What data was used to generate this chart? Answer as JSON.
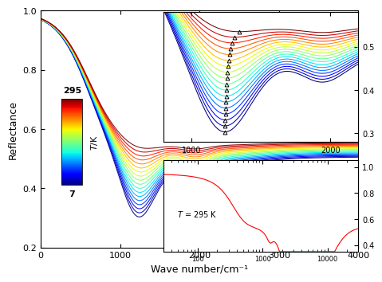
{
  "title": "",
  "xlabel": "Wave number/cm⁻¹",
  "ylabel": "Reflectance",
  "xlim": [
    0,
    4000
  ],
  "ylim": [
    0.2,
    1.0
  ],
  "xticks": [
    0,
    1000,
    2000,
    3000,
    4000
  ],
  "yticks": [
    0.2,
    0.4,
    0.6,
    0.8,
    1.0
  ],
  "n_curves": 18,
  "T_min": 7,
  "T_max": 295,
  "bg_color": "#ffffff",
  "inset1": {
    "xlim": [
      800,
      2200
    ],
    "ylim": [
      0.28,
      0.58
    ],
    "xticks": [
      1000,
      2000
    ],
    "yticks": [
      0.3,
      0.4,
      0.5
    ]
  },
  "inset2": {
    "ylim": [
      0.35,
      1.05
    ],
    "yticks": [
      0.4,
      0.6,
      0.8,
      1.0
    ],
    "label": "T = 295 K"
  },
  "colorbar_label": "T/K",
  "colorbar_label_italic": true
}
